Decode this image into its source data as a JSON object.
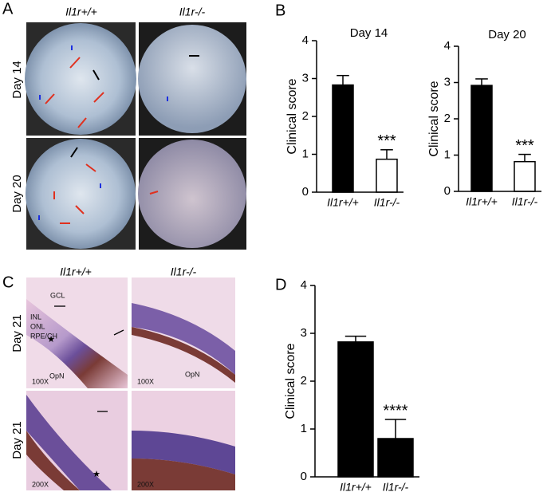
{
  "figure": {
    "panels": [
      "A",
      "B",
      "C",
      "D"
    ],
    "panel_a": {
      "columns": [
        "Il1r+/+",
        "Il1r-/-"
      ],
      "rows": [
        "Day 14",
        "Day 20"
      ]
    },
    "panel_c": {
      "columns": [
        "Il1r+/+",
        "Il1r-/-"
      ],
      "rows": [
        "Day 21",
        "Day 21"
      ],
      "labels": [
        "GCL",
        "INL",
        "ONL",
        "RPE/CH",
        "OpN",
        "OpN",
        "100X",
        "100X",
        "200X",
        "200X"
      ]
    }
  },
  "chart_data": [
    {
      "type": "bar",
      "title": "Day 14",
      "ylabel": "Clinical score",
      "categories": [
        "Il1r+/+",
        "Il1r-/-"
      ],
      "values": [
        2.83,
        0.87
      ],
      "errors": [
        0.25,
        0.25
      ],
      "colors": [
        "#000000",
        "#ffffff"
      ],
      "annotation": "***",
      "ylim": [
        0,
        4
      ],
      "yticks": [
        0,
        1,
        2,
        3,
        4
      ]
    },
    {
      "type": "bar",
      "title": "Day 20",
      "ylabel": "Clinical score",
      "categories": [
        "Il1r+/+",
        "Il1r-/-"
      ],
      "values": [
        2.92,
        0.82
      ],
      "errors": [
        0.18,
        0.2
      ],
      "colors": [
        "#000000",
        "#ffffff"
      ],
      "annotation": "***",
      "ylim": [
        0,
        4
      ],
      "yticks": [
        0,
        1,
        2,
        3,
        4
      ]
    },
    {
      "type": "bar",
      "ylabel": "Clinical score",
      "categories": [
        "Il1r+/+",
        "Il1r-/-"
      ],
      "values": [
        2.82,
        0.8
      ],
      "errors": [
        0.12,
        0.4
      ],
      "colors": [
        "#000000",
        "#000000"
      ],
      "annotation": "****",
      "ylim": [
        0,
        4
      ],
      "yticks": [
        0,
        1,
        2,
        3,
        4
      ]
    }
  ]
}
